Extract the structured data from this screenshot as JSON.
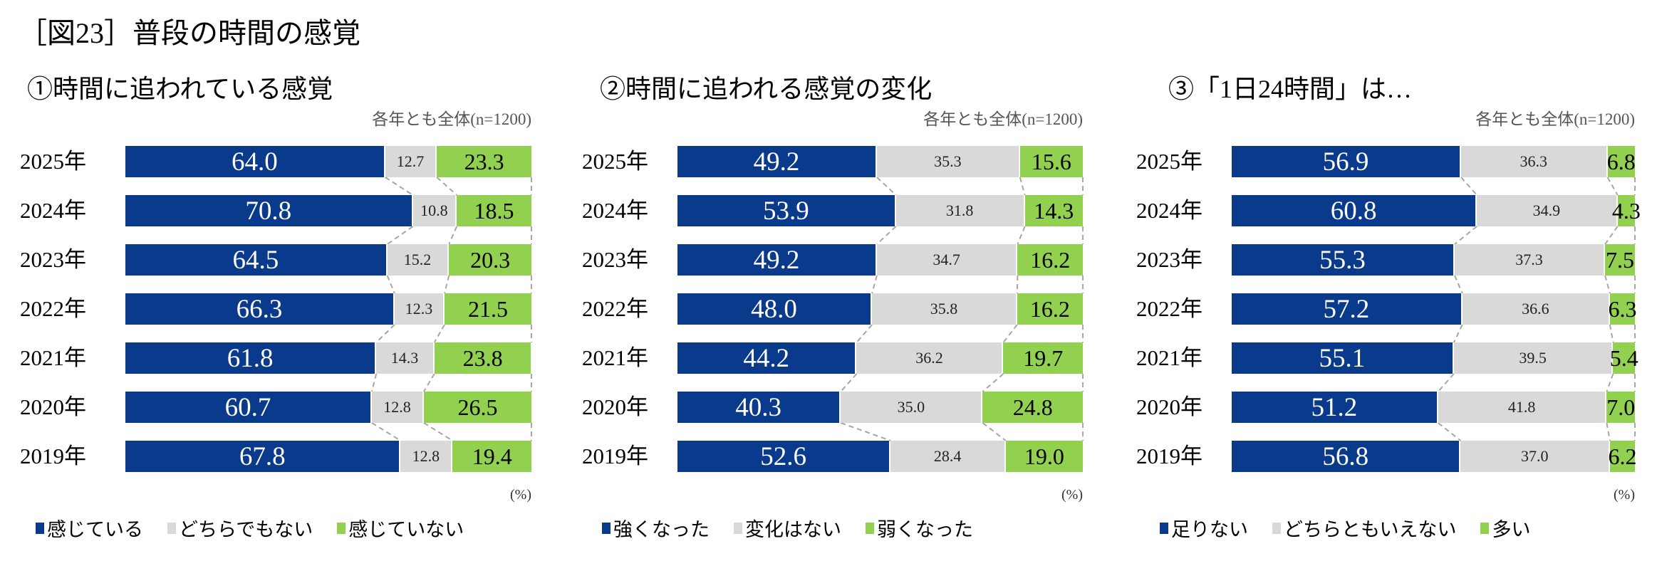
{
  "title": "［図23］普段の時間の感覚",
  "colors": {
    "strong": "#0a3a8c",
    "neutral": "#d9d9d9",
    "weak": "#92d050",
    "connector": "#a6a6a6"
  },
  "chart_data": [
    {
      "type": "bar",
      "orientation": "horizontal",
      "stacked": true,
      "title": "①時間に追われている感覚",
      "note": "各年とも全体(n=1200)",
      "unit": "(%)",
      "categories": [
        "2025年",
        "2024年",
        "2023年",
        "2022年",
        "2021年",
        "2020年",
        "2019年"
      ],
      "series": [
        {
          "name": "感じている",
          "values": [
            64.0,
            70.8,
            64.5,
            66.3,
            61.8,
            60.7,
            67.8
          ]
        },
        {
          "name": "どちらでもない",
          "values": [
            12.7,
            10.8,
            15.2,
            12.3,
            14.3,
            12.8,
            12.8
          ]
        },
        {
          "name": "感じていない",
          "values": [
            23.3,
            18.5,
            20.3,
            21.5,
            23.8,
            26.5,
            19.4
          ]
        }
      ],
      "xlim": [
        0,
        100
      ],
      "legend": "bottom"
    },
    {
      "type": "bar",
      "orientation": "horizontal",
      "stacked": true,
      "title": "②時間に追われる感覚の変化",
      "note": "各年とも全体(n=1200)",
      "unit": "(%)",
      "categories": [
        "2025年",
        "2024年",
        "2023年",
        "2022年",
        "2021年",
        "2020年",
        "2019年"
      ],
      "series": [
        {
          "name": "強くなった",
          "values": [
            49.2,
            53.9,
            49.2,
            48.0,
            44.2,
            40.3,
            52.6
          ]
        },
        {
          "name": "変化はない",
          "values": [
            35.3,
            31.8,
            34.7,
            35.8,
            36.2,
            35.0,
            28.4
          ]
        },
        {
          "name": "弱くなった",
          "values": [
            15.6,
            14.3,
            16.2,
            16.2,
            19.7,
            24.8,
            19.0
          ]
        }
      ],
      "xlim": [
        0,
        100
      ],
      "legend": "bottom"
    },
    {
      "type": "bar",
      "orientation": "horizontal",
      "stacked": true,
      "title": "③「1日24時間」は…",
      "note": "各年とも全体(n=1200)",
      "unit": "(%)",
      "categories": [
        "2025年",
        "2024年",
        "2023年",
        "2022年",
        "2021年",
        "2020年",
        "2019年"
      ],
      "series": [
        {
          "name": "足りない",
          "values": [
            56.9,
            60.8,
            55.3,
            57.2,
            55.1,
            51.2,
            56.8
          ]
        },
        {
          "name": "どちらともいえない",
          "values": [
            36.3,
            34.9,
            37.3,
            36.6,
            39.5,
            41.8,
            37.0
          ]
        },
        {
          "name": "多い",
          "values": [
            6.8,
            4.3,
            7.5,
            6.3,
            5.4,
            7.0,
            6.2
          ]
        }
      ],
      "xlim": [
        0,
        100
      ],
      "legend": "bottom"
    }
  ]
}
